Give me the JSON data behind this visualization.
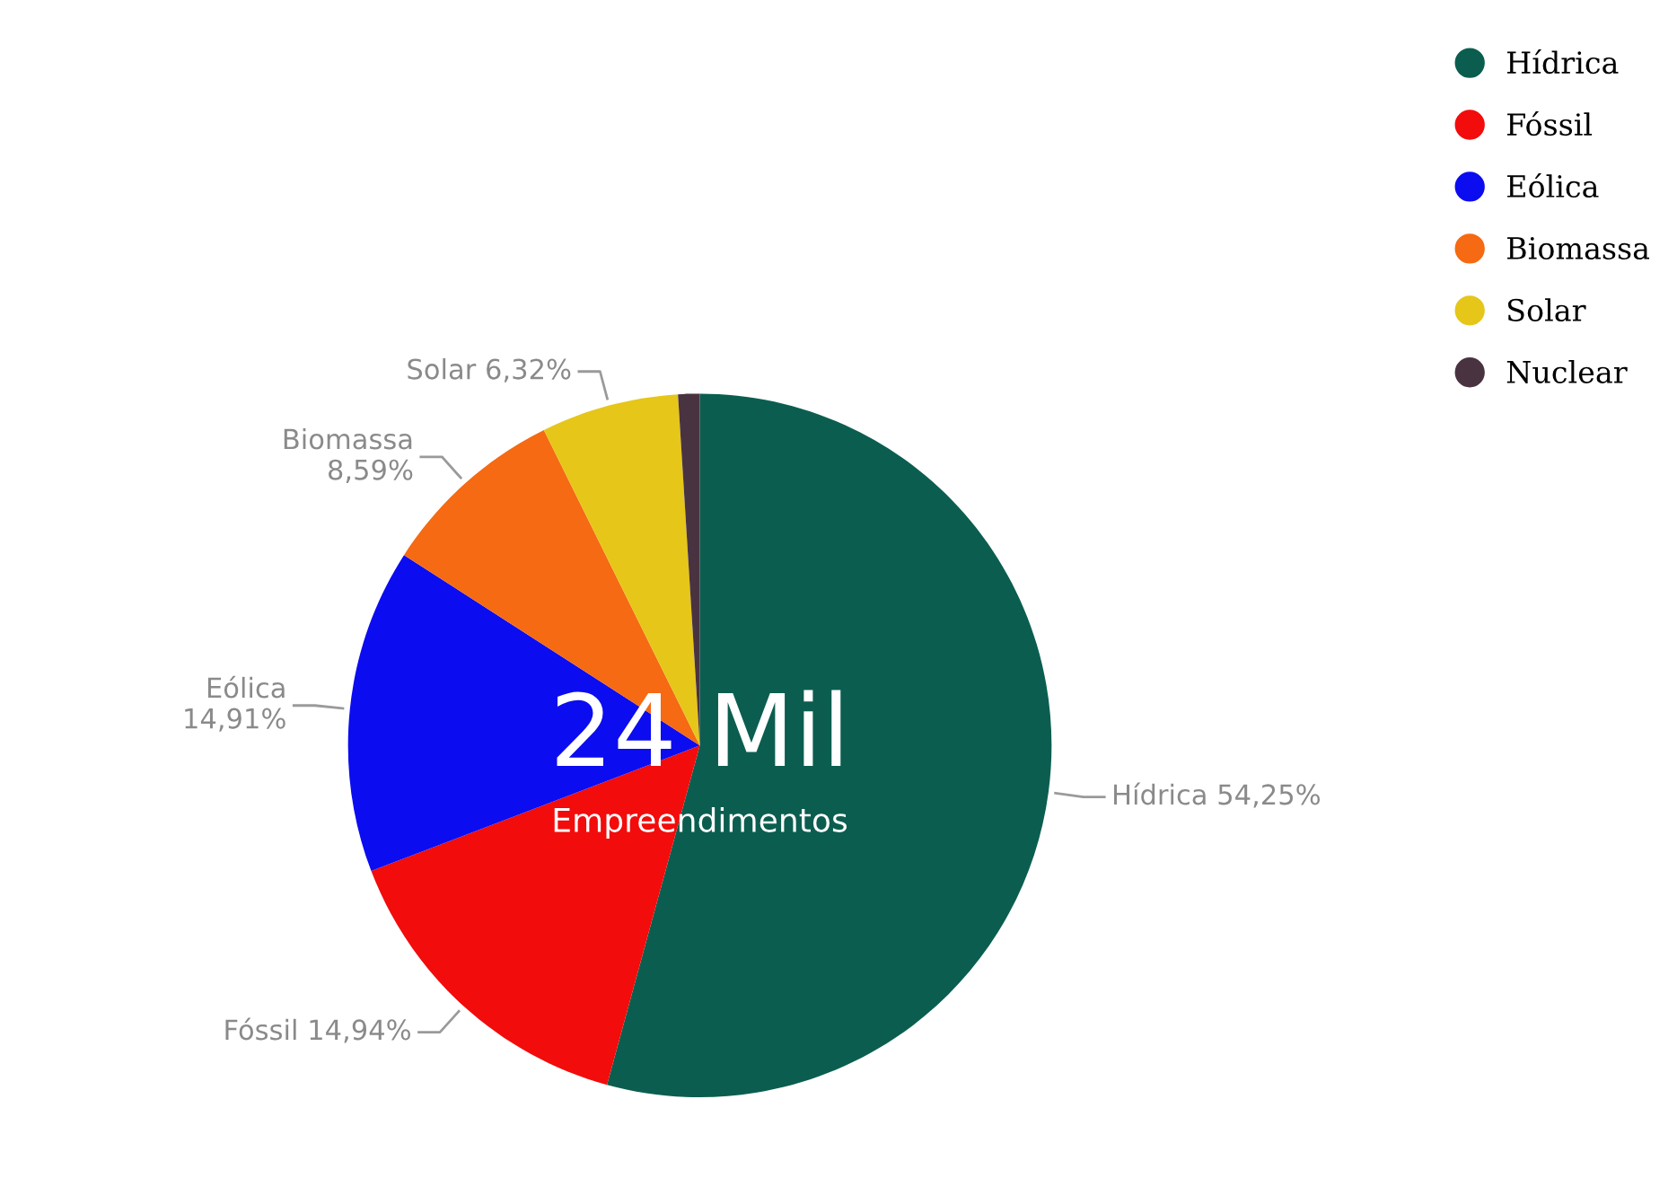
{
  "chart_data": {
    "type": "pie",
    "categories": [
      "Hídrica",
      "Fóssil",
      "Eólica",
      "Biomassa",
      "Solar",
      "Nuclear"
    ],
    "values": [
      54.25,
      14.94,
      14.91,
      8.59,
      6.32,
      0.99
    ],
    "colors": [
      "#0b5e4f",
      "#f20c0c",
      "#0c0cf0",
      "#f56a12",
      "#e6c619",
      "#4a3340"
    ],
    "value_labels": [
      "Hídrica 54,25%",
      "Fóssil 14,94%",
      "Eólica\n14,91%",
      "Biomassa\n8,59%",
      "Solar 6,32%",
      null
    ],
    "annotations": [
      "24 Mil",
      "Empreendimentos"
    ],
    "legend": "top right"
  }
}
